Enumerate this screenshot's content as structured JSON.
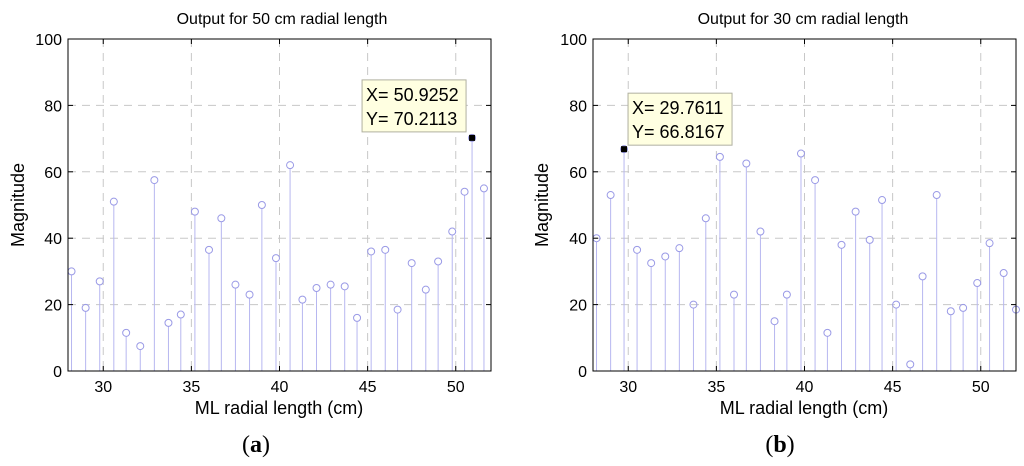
{
  "chart_data": [
    {
      "type": "stem",
      "panel_label": "a",
      "title": "Output for 50 cm radial length",
      "xlabel": "ML radial length (cm)",
      "ylabel": "Magnitude",
      "xlim": [
        28,
        52
      ],
      "ylim": [
        0,
        100
      ],
      "xticks": [
        30,
        35,
        40,
        45,
        50
      ],
      "yticks": [
        0,
        20,
        40,
        60,
        80,
        100
      ],
      "grid": true,
      "x": [
        28.2,
        29.0,
        29.8,
        30.6,
        31.3,
        32.1,
        32.9,
        33.7,
        34.4,
        35.2,
        36.0,
        36.7,
        37.5,
        38.3,
        39.0,
        39.8,
        40.6,
        41.3,
        42.1,
        42.9,
        43.7,
        44.4,
        45.2,
        46.0,
        46.7,
        47.5,
        48.3,
        49.0,
        49.8,
        50.5,
        50.9252,
        51.6
      ],
      "values": [
        30,
        19,
        27,
        51,
        11.5,
        7.5,
        57.5,
        14.5,
        17,
        48,
        36.5,
        46,
        26,
        23,
        50,
        34,
        62,
        21.5,
        25,
        26,
        25.5,
        16,
        36,
        36.5,
        18.5,
        32.5,
        24.5,
        33,
        42,
        54,
        70.2113,
        55
      ],
      "datatip": {
        "x": 50.9252,
        "y": 70.2113,
        "x_text": "X= 50.9252",
        "y_text": "Y= 70.2113"
      }
    },
    {
      "type": "stem",
      "panel_label": "b",
      "title": "Output for 30 cm radial length",
      "xlabel": "ML radial length (cm)",
      "ylabel": "Magnitude",
      "xlim": [
        28,
        52
      ],
      "ylim": [
        0,
        100
      ],
      "xticks": [
        30,
        35,
        40,
        45,
        50
      ],
      "yticks": [
        0,
        20,
        40,
        60,
        80,
        100
      ],
      "grid": true,
      "x": [
        28.2,
        29.0,
        29.7611,
        30.5,
        31.3,
        32.1,
        32.9,
        33.7,
        34.4,
        35.2,
        36.0,
        36.7,
        37.5,
        38.3,
        39.0,
        39.8,
        40.6,
        41.3,
        42.1,
        42.9,
        43.7,
        44.4,
        45.2,
        46.0,
        46.7,
        47.5,
        48.3,
        49.0,
        49.8,
        50.5,
        51.3,
        52.0
      ],
      "values": [
        40,
        53,
        66.8167,
        36.5,
        32.5,
        34.5,
        37,
        20,
        46,
        64.5,
        23,
        62.5,
        42,
        15,
        23,
        65.5,
        57.5,
        11.5,
        38,
        48,
        39.5,
        51.5,
        20,
        2,
        28.5,
        53,
        18,
        19,
        26.5,
        38.5,
        29.5,
        18.5
      ],
      "datatip": {
        "x": 29.7611,
        "y": 66.8167,
        "x_text": "X= 29.7611",
        "y_text": "Y= 66.8167"
      }
    }
  ]
}
